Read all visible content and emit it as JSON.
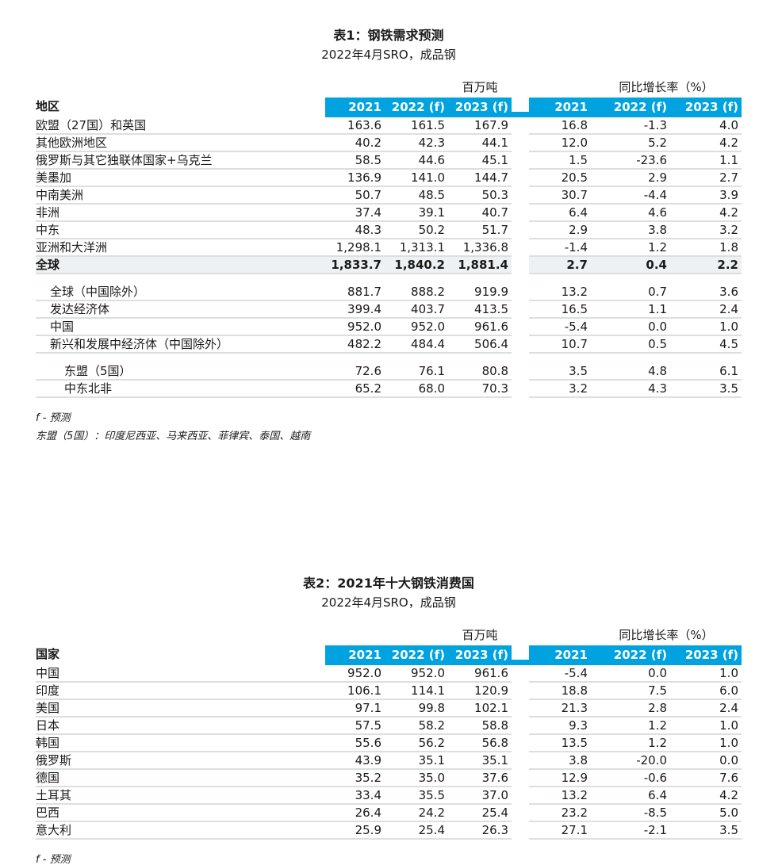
{
  "colors": {
    "header_band": "#00A3E0",
    "header_band_text": "#FFFFFF",
    "highlight_row": "#EEF1F3",
    "row_divider": "#DBDFE0"
  },
  "table1": {
    "title": "表1：钢铁需求预测",
    "subtitle": "2022年4月SRO，成品钢",
    "row_header": "地区",
    "group1_label": "百万吨",
    "group2_label": "同比增长率（%）",
    "col_headers": [
      "2021",
      "2022 (f)",
      "2023 (f)",
      "2021",
      "2022 (f)",
      "2023 (f)"
    ],
    "rows": [
      {
        "label": "欧盟（27国）和英国",
        "indent": 0,
        "values": [
          "163.6",
          "161.5",
          "167.9",
          "16.8",
          "-1.3",
          "4.0"
        ]
      },
      {
        "label": "其他欧洲地区",
        "indent": 0,
        "values": [
          "40.2",
          "42.3",
          "44.1",
          "12.0",
          "5.2",
          "4.2"
        ]
      },
      {
        "label": "俄罗斯与其它独联体国家+乌克兰",
        "indent": 0,
        "values": [
          "58.5",
          "44.6",
          "45.1",
          "1.5",
          "-23.6",
          "1.1"
        ]
      },
      {
        "label": "美墨加",
        "indent": 0,
        "values": [
          "136.9",
          "141.0",
          "144.7",
          "20.5",
          "2.9",
          "2.7"
        ]
      },
      {
        "label": "中南美洲",
        "indent": 0,
        "values": [
          "50.7",
          "48.5",
          "50.3",
          "30.7",
          "-4.4",
          "3.9"
        ]
      },
      {
        "label": "非洲",
        "indent": 0,
        "values": [
          "37.4",
          "39.1",
          "40.7",
          "6.4",
          "4.6",
          "4.2"
        ]
      },
      {
        "label": "中东",
        "indent": 0,
        "values": [
          "48.3",
          "50.2",
          "51.7",
          "2.9",
          "3.8",
          "3.2"
        ]
      },
      {
        "label": "亚洲和大洋洲",
        "indent": 0,
        "values": [
          "1,298.1",
          "1,313.1",
          "1,336.8",
          "-1.4",
          "1.2",
          "1.8"
        ]
      },
      {
        "label": "全球",
        "indent": 0,
        "bold": true,
        "highlight": true,
        "values": [
          "1,833.7",
          "1,840.2",
          "1,881.4",
          "2.7",
          "0.4",
          "2.2"
        ]
      },
      {
        "label": "全球（中国除外）",
        "indent": 1,
        "spacer_before": true,
        "values": [
          "881.7",
          "888.2",
          "919.9",
          "13.2",
          "0.7",
          "3.6"
        ]
      },
      {
        "label": "发达经济体",
        "indent": 1,
        "values": [
          "399.4",
          "403.7",
          "413.5",
          "16.5",
          "1.1",
          "2.4"
        ]
      },
      {
        "label": "中国",
        "indent": 1,
        "values": [
          "952.0",
          "952.0",
          "961.6",
          "-5.4",
          "0.0",
          "1.0"
        ]
      },
      {
        "label": "新兴和发展中经济体（中国除外）",
        "indent": 1,
        "values": [
          "482.2",
          "484.4",
          "506.4",
          "10.7",
          "0.5",
          "4.5"
        ]
      },
      {
        "label": "东盟（5国）",
        "indent": 2,
        "spacer_before": true,
        "values": [
          "72.6",
          "76.1",
          "80.8",
          "3.5",
          "4.8",
          "6.1"
        ]
      },
      {
        "label": "中东北非",
        "indent": 2,
        "values": [
          "65.2",
          "68.0",
          "70.3",
          "3.2",
          "4.3",
          "3.5"
        ]
      }
    ],
    "footnotes": [
      "f - 预测",
      "东盟（5国）：印度尼西亚、马来西亚、菲律宾、泰国、越南"
    ]
  },
  "table2": {
    "title": "表2：2021年十大钢铁消费国",
    "subtitle": "2022年4月SRO，成品钢",
    "row_header": "国家",
    "group1_label": "百万吨",
    "group2_label": "同比增长率（%）",
    "col_headers": [
      "2021",
      "2022 (f)",
      "2023 (f)",
      "2021",
      "2022 (f)",
      "2023 (f)"
    ],
    "rows": [
      {
        "label": "中国",
        "indent": 0,
        "values": [
          "952.0",
          "952.0",
          "961.6",
          "-5.4",
          "0.0",
          "1.0"
        ]
      },
      {
        "label": "印度",
        "indent": 0,
        "values": [
          "106.1",
          "114.1",
          "120.9",
          "18.8",
          "7.5",
          "6.0"
        ]
      },
      {
        "label": "美国",
        "indent": 0,
        "values": [
          "97.1",
          "99.8",
          "102.1",
          "21.3",
          "2.8",
          "2.4"
        ]
      },
      {
        "label": "日本",
        "indent": 0,
        "values": [
          "57.5",
          "58.2",
          "58.8",
          "9.3",
          "1.2",
          "1.0"
        ]
      },
      {
        "label": "韩国",
        "indent": 0,
        "values": [
          "55.6",
          "56.2",
          "56.8",
          "13.5",
          "1.2",
          "1.0"
        ]
      },
      {
        "label": "俄罗斯",
        "indent": 0,
        "values": [
          "43.9",
          "35.1",
          "35.1",
          "3.8",
          "-20.0",
          "0.0"
        ]
      },
      {
        "label": "德国",
        "indent": 0,
        "values": [
          "35.2",
          "35.0",
          "37.6",
          "12.9",
          "-0.6",
          "7.6"
        ]
      },
      {
        "label": "土耳其",
        "indent": 0,
        "values": [
          "33.4",
          "35.5",
          "37.0",
          "13.2",
          "6.4",
          "4.2"
        ]
      },
      {
        "label": "巴西",
        "indent": 0,
        "values": [
          "26.4",
          "24.2",
          "25.4",
          "23.2",
          "-8.5",
          "5.0"
        ]
      },
      {
        "label": "意大利",
        "indent": 0,
        "values": [
          "25.9",
          "25.4",
          "26.3",
          "27.1",
          "-2.1",
          "3.5"
        ]
      }
    ],
    "footnotes": [
      "f - 预测"
    ]
  }
}
